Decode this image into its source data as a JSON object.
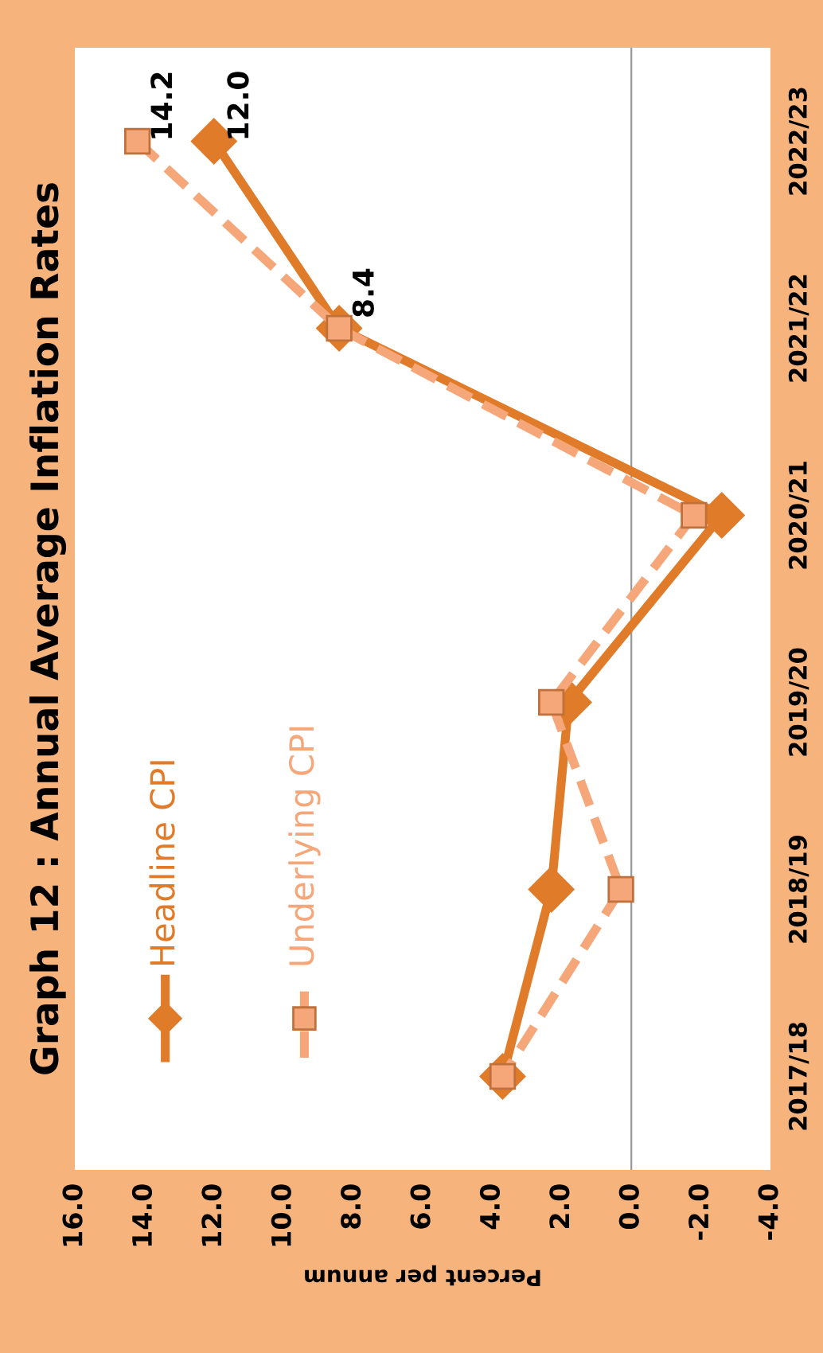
{
  "chart_data": {
    "type": "line",
    "orientation": "horizontal",
    "title": "Graph 12 : Annual Average Inflation Rates",
    "xlabel": "Percent per annum",
    "categories": [
      "2022/23",
      "2021/22",
      "2020/21",
      "2019/20",
      "2018/19",
      "2017/18"
    ],
    "series": [
      {
        "name": "Headline CPI",
        "color": "#e07b2a",
        "marker": "diamond",
        "line_style": "solid",
        "values": [
          12.0,
          8.4,
          -2.6,
          1.8,
          2.3,
          3.7
        ],
        "value_labels": [
          "12.0",
          "8.4",
          null,
          null,
          null,
          null
        ]
      },
      {
        "name": "Underlying CPI",
        "color": "#f5a77a",
        "marker": "square",
        "line_style": "dashed",
        "values": [
          14.2,
          8.4,
          -1.8,
          2.3,
          0.3,
          3.7
        ],
        "value_labels": [
          "14.2",
          null,
          null,
          null,
          null,
          null
        ]
      }
    ],
    "xlim": [
      16,
      -4
    ],
    "xticks": [
      {
        "value": 16,
        "label": "16.0"
      },
      {
        "value": 14,
        "label": "14.0"
      },
      {
        "value": 12,
        "label": "12.0"
      },
      {
        "value": 10,
        "label": "10.0"
      },
      {
        "value": 8,
        "label": "8.0"
      },
      {
        "value": 6,
        "label": "6.0"
      },
      {
        "value": 4,
        "label": "4.0"
      },
      {
        "value": 2,
        "label": "2.0"
      },
      {
        "value": 0,
        "label": "0.0"
      },
      {
        "value": -2,
        "label": "-2.0"
      },
      {
        "value": -4,
        "label": "-4.0"
      }
    ],
    "ref_lines": [
      {
        "axis": "x",
        "value": 0,
        "color": "#999999"
      }
    ],
    "grid": false,
    "legend": "left"
  }
}
